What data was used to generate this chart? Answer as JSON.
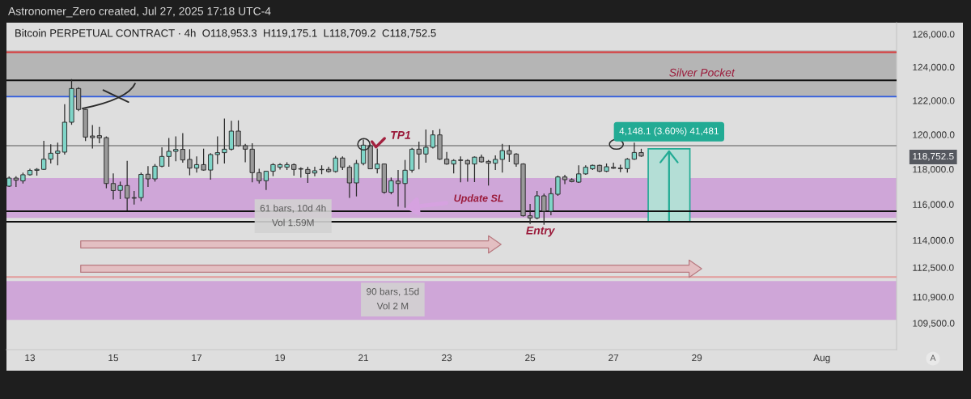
{
  "chart_data": {
    "type": "candlestick",
    "title": "Bitcoin PERPETUAL CONTRACT · 4h  O118,953.3  H119,175.1  L118,709.2  C118,752.5",
    "x": [
      "2025-07-12T12:00",
      "2025-07-12T16:00",
      "2025-07-12T20:00",
      "2025-07-13T00:00",
      "2025-07-13T04:00",
      "2025-07-13T08:00",
      "2025-07-13T12:00",
      "2025-07-13T16:00",
      "2025-07-13T20:00",
      "2025-07-14T00:00",
      "2025-07-14T04:00",
      "2025-07-14T08:00",
      "2025-07-14T12:00",
      "2025-07-14T16:00",
      "2025-07-14T20:00",
      "2025-07-15T00:00",
      "2025-07-15T04:00",
      "2025-07-15T08:00",
      "2025-07-15T12:00",
      "2025-07-15T16:00",
      "2025-07-15T20:00",
      "2025-07-16T00:00",
      "2025-07-16T04:00",
      "2025-07-16T08:00",
      "2025-07-16T12:00",
      "2025-07-16T16:00",
      "2025-07-16T20:00",
      "2025-07-17T00:00",
      "2025-07-17T04:00",
      "2025-07-17T08:00",
      "2025-07-17T12:00",
      "2025-07-17T16:00",
      "2025-07-17T20:00",
      "2025-07-18T00:00",
      "2025-07-18T04:00",
      "2025-07-18T08:00",
      "2025-07-18T12:00",
      "2025-07-18T16:00",
      "2025-07-18T20:00",
      "2025-07-19T00:00",
      "2025-07-19T04:00",
      "2025-07-19T08:00",
      "2025-07-19T12:00",
      "2025-07-19T16:00",
      "2025-07-19T20:00",
      "2025-07-20T00:00",
      "2025-07-20T04:00",
      "2025-07-20T08:00",
      "2025-07-20T12:00",
      "2025-07-20T16:00",
      "2025-07-20T20:00",
      "2025-07-21T00:00",
      "2025-07-21T04:00",
      "2025-07-21T08:00",
      "2025-07-21T12:00",
      "2025-07-21T16:00",
      "2025-07-21T20:00",
      "2025-07-22T00:00",
      "2025-07-22T04:00",
      "2025-07-22T08:00",
      "2025-07-22T12:00",
      "2025-07-22T16:00",
      "2025-07-22T20:00",
      "2025-07-23T00:00",
      "2025-07-23T04:00",
      "2025-07-23T08:00",
      "2025-07-23T12:00",
      "2025-07-23T16:00",
      "2025-07-23T20:00",
      "2025-07-24T00:00",
      "2025-07-24T04:00",
      "2025-07-24T08:00",
      "2025-07-24T12:00",
      "2025-07-24T16:00",
      "2025-07-24T20:00",
      "2025-07-25T00:00",
      "2025-07-25T04:00",
      "2025-07-25T08:00",
      "2025-07-25T12:00",
      "2025-07-25T16:00",
      "2025-07-25T20:00",
      "2025-07-26T00:00",
      "2025-07-26T04:00",
      "2025-07-26T08:00",
      "2025-07-26T12:00",
      "2025-07-26T16:00",
      "2025-07-26T20:00",
      "2025-07-27T00:00",
      "2025-07-27T04:00",
      "2025-07-27T08:00",
      "2025-07-27T12:00",
      "2025-07-27T16:00"
    ],
    "ohlc": [
      [
        117030,
        117590,
        116990,
        117490
      ],
      [
        117490,
        117600,
        116990,
        117370
      ],
      [
        117330,
        117800,
        117180,
        117680
      ],
      [
        117680,
        118020,
        117630,
        117930
      ],
      [
        117930,
        118060,
        117630,
        117990
      ],
      [
        117990,
        119640,
        117955,
        118575
      ],
      [
        118575,
        119430,
        118325,
        118916
      ],
      [
        118916,
        119530,
        118220,
        119040
      ],
      [
        118980,
        121780,
        118840,
        120720
      ],
      [
        120720,
        123275,
        120570,
        122713
      ],
      [
        122713,
        122790,
        121370,
        121470
      ],
      [
        121470,
        121500,
        119620,
        119854
      ],
      [
        119915,
        120560,
        119195,
        119820
      ],
      [
        119935,
        120450,
        119490,
        119810
      ],
      [
        119820,
        119890,
        116910,
        117180
      ],
      [
        117180,
        117755,
        116270,
        116780
      ],
      [
        116790,
        117290,
        116300,
        117063
      ],
      [
        117063,
        118480,
        115660,
        116350
      ],
      [
        116380,
        116760,
        115990,
        116350
      ],
      [
        116380,
        117800,
        116180,
        117700
      ],
      [
        117710,
        118170,
        116990,
        117445
      ],
      [
        117445,
        118295,
        117290,
        118170
      ],
      [
        118170,
        119260,
        118110,
        118730
      ],
      [
        118730,
        119805,
        118140,
        119025
      ],
      [
        119025,
        119890,
        118450,
        119135
      ],
      [
        119140,
        120080,
        118370,
        118530
      ],
      [
        118560,
        119150,
        117650,
        118060
      ],
      [
        118060,
        118730,
        117800,
        118260
      ],
      [
        118260,
        119180,
        117910,
        117950
      ],
      [
        117950,
        118916,
        117400,
        118840
      ],
      [
        118840,
        119890,
        118295,
        118950
      ],
      [
        118950,
        120930,
        118325,
        119150
      ],
      [
        119150,
        120800,
        119070,
        120200
      ],
      [
        120200,
        120830,
        119300,
        119350
      ],
      [
        119350,
        119460,
        118400,
        119150
      ],
      [
        119150,
        119490,
        117245,
        117800
      ],
      [
        117800,
        118020,
        117180,
        117340
      ],
      [
        117340,
        117910,
        116810,
        117880
      ],
      [
        117880,
        118340,
        117600,
        118260
      ],
      [
        118110,
        118340,
        117980,
        118260
      ],
      [
        118110,
        118390,
        117960,
        118260
      ],
      [
        118260,
        118325,
        117630,
        117985
      ],
      [
        118030,
        118110,
        117520,
        118000
      ],
      [
        117985,
        118140,
        117215,
        117750
      ],
      [
        117780,
        118140,
        117600,
        117910
      ],
      [
        117970,
        118220,
        117710,
        117990
      ],
      [
        117990,
        118140,
        117800,
        117865
      ],
      [
        117865,
        118760,
        117800,
        118640
      ],
      [
        118640,
        118730,
        117950,
        118110
      ],
      [
        118110,
        118220,
        116370,
        117215
      ],
      [
        117215,
        118530,
        116450,
        118325
      ],
      [
        118325,
        119700,
        118220,
        119384
      ],
      [
        119350,
        119420,
        118000,
        118020
      ],
      [
        118020,
        119195,
        117755,
        118295
      ],
      [
        118295,
        118325,
        116603,
        116680
      ],
      [
        116680,
        117523,
        116570,
        117340
      ],
      [
        117320,
        117955,
        115870,
        117180
      ],
      [
        117180,
        118530,
        115810,
        117940
      ],
      [
        117940,
        119230,
        117800,
        119150
      ],
      [
        119150,
        119590,
        117985,
        118870
      ],
      [
        118870,
        120290,
        118370,
        119260
      ],
      [
        119260,
        120250,
        119195,
        119980
      ],
      [
        119980,
        120326,
        118530,
        118575
      ],
      [
        118575,
        118995,
        118260,
        118295
      ],
      [
        118295,
        118575,
        117755,
        118500
      ],
      [
        118530,
        118730,
        117245,
        118500
      ],
      [
        118500,
        118575,
        117290,
        118295
      ],
      [
        118295,
        118730,
        117260,
        118690
      ],
      [
        118690,
        118840,
        118370,
        118420
      ],
      [
        118450,
        118530,
        117063,
        118340
      ],
      [
        118340,
        118790,
        117955,
        118560
      ],
      [
        118560,
        119460,
        117800,
        119070
      ],
      [
        119070,
        119384,
        118420,
        118870
      ],
      [
        118870,
        118916,
        118140,
        118295
      ],
      [
        118295,
        118340,
        115315,
        115360
      ],
      [
        115360,
        116020,
        114900,
        115237
      ],
      [
        115237,
        116760,
        115160,
        116480
      ],
      [
        116480,
        116603,
        114850,
        115615
      ],
      [
        115615,
        116940,
        115390,
        116603
      ],
      [
        116570,
        117630,
        116480,
        117555
      ],
      [
        117555,
        117680,
        117150,
        117400
      ],
      [
        117400,
        117480,
        117245,
        117290
      ],
      [
        117260,
        118220,
        117215,
        117730
      ],
      [
        117730,
        118220,
        117680,
        118110
      ],
      [
        118020,
        118260,
        117955,
        118220
      ],
      [
        118220,
        118260,
        117830,
        117880
      ],
      [
        117880,
        118325,
        117830,
        118140
      ],
      [
        118110,
        118370,
        118020,
        118050
      ],
      [
        118060,
        118260,
        117830,
        118030
      ],
      [
        118030,
        118640,
        117800,
        118575
      ],
      [
        118575,
        119530,
        118530,
        118960
      ],
      [
        118953.3,
        119175.1,
        118709.2,
        118752.5
      ]
    ],
    "colors": [
      "#7fd5c8",
      "#9a9a9a",
      "#7fd5c8",
      "#7fd5c8",
      "#7fd5c8",
      "#7fd5c8",
      "#7fd5c8",
      "#7fd5c8",
      "#7fd5c8",
      "#7fd5c8",
      "#9a9a9a",
      "#9a9a9a",
      "#9a9a9a",
      "#9a9a9a",
      "#9a9a9a",
      "#9a9a9a",
      "#7fd5c8",
      "#9a9a9a",
      "#9a9a9a",
      "#7fd5c8",
      "#9a9a9a",
      "#7fd5c8",
      "#7fd5c8",
      "#7fd5c8",
      "#7fd5c8",
      "#9a9a9a",
      "#9a9a9a",
      "#7fd5c8",
      "#9a9a9a",
      "#7fd5c8",
      "#7fd5c8",
      "#7fd5c8",
      "#7fd5c8",
      "#9a9a9a",
      "#9a9a9a",
      "#9a9a9a",
      "#9a9a9a",
      "#7fd5c8",
      "#7fd5c8",
      "#7fd5c8",
      "#7fd5c8",
      "#9a9a9a",
      "#9a9a9a",
      "#9a9a9a",
      "#7fd5c8",
      "#7fd5c8",
      "#9a9a9a",
      "#7fd5c8",
      "#9a9a9a",
      "#9a9a9a",
      "#7fd5c8",
      "#7fd5c8",
      "#9a9a9a",
      "#7fd5c8",
      "#9a9a9a",
      "#7fd5c8",
      "#9a9a9a",
      "#7fd5c8",
      "#7fd5c8",
      "#9a9a9a",
      "#7fd5c8",
      "#7fd5c8",
      "#9a9a9a",
      "#9a9a9a",
      "#7fd5c8",
      "#9a9a9a",
      "#9a9a9a",
      "#7fd5c8",
      "#9a9a9a",
      "#9a9a9a",
      "#7fd5c8",
      "#7fd5c8",
      "#9a9a9a",
      "#9a9a9a",
      "#9a9a9a",
      "#9a9a9a",
      "#7fd5c8",
      "#9a9a9a",
      "#7fd5c8",
      "#7fd5c8",
      "#9a9a9a",
      "#9a9a9a",
      "#7fd5c8",
      "#7fd5c8",
      "#7fd5c8",
      "#9a9a9a",
      "#7fd5c8",
      "#9a9a9a",
      "#9a9a9a",
      "#7fd5c8",
      "#7fd5c8",
      "#9a9a9a"
    ],
    "series": [
      {
        "type": "bar",
        "x": [
          "2025-07-28T08:00"
        ],
        "base": [
          115027
        ],
        "values": [
          4148.1
        ],
        "color": "#b4ded6"
      }
    ],
    "log": true,
    "ylim": [
      108100,
      126700
    ],
    "yticks": [
      {
        "value": 126000,
        "label": "126,000.0"
      },
      {
        "value": 124000,
        "label": "124,000.0"
      },
      {
        "value": 122000,
        "label": "122,000.0"
      },
      {
        "value": 120000,
        "label": "120,000.0"
      },
      {
        "value": 118752.5,
        "label": "118,752.5"
      },
      {
        "value": 118000,
        "label": "118,000.0"
      },
      {
        "value": 116000,
        "label": "116,000.0"
      },
      {
        "value": 114000,
        "label": "114,000.0"
      },
      {
        "value": 112500,
        "label": "112,500.0"
      },
      {
        "value": 110900,
        "label": "110,900.0"
      },
      {
        "value": 109500,
        "label": "109,500.0"
      }
    ],
    "xlim": [
      "2025-07-12T10:30",
      "2025-08-02T19:00"
    ],
    "xticks": [
      {
        "value": "2025-07-13",
        "label": "13"
      },
      {
        "value": "2025-07-15",
        "label": "15"
      },
      {
        "value": "2025-07-17",
        "label": "17"
      },
      {
        "value": "2025-07-19",
        "label": "19"
      },
      {
        "value": "2025-07-21",
        "label": "21"
      },
      {
        "value": "2025-07-23",
        "label": "23"
      },
      {
        "value": "2025-07-25",
        "label": "25"
      },
      {
        "value": "2025-07-27",
        "label": "27"
      },
      {
        "value": "2025-07-29",
        "label": "29"
      },
      {
        "value": "2025-08-01",
        "label": "Aug"
      }
    ],
    "ref_lines": [
      {
        "axis": "y",
        "value": 124900,
        "color": "#d9383a"
      },
      {
        "axis": "y",
        "value": 123200,
        "color": "#111111"
      },
      {
        "axis": "y",
        "value": 122230,
        "color": "#2f5be0"
      },
      {
        "axis": "y",
        "value": 119350,
        "color": "#9a9a9a"
      },
      {
        "axis": "y",
        "value": 115615,
        "color": "#111111"
      },
      {
        "axis": "y",
        "value": 115027,
        "color": "#111111"
      },
      {
        "axis": "y",
        "value": 111980,
        "color": "#e39a9a"
      }
    ],
    "bands": [
      {
        "axis": "y",
        "from": 122230,
        "to": 125000,
        "label": "Silver Pocket",
        "color": "#b5b5b5"
      },
      {
        "axis": "y",
        "from": 115237,
        "to": 117490,
        "color": "#cfa6d8"
      },
      {
        "axis": "y",
        "from": 109672,
        "to": 111760,
        "color": "#cfa6d8"
      }
    ],
    "annotations": [
      "Astronomer_Zero created, Jul 27, 2025 17:18 UTC-4",
      "A",
      "61 bars, 10d 4h\nVol 1.59M",
      "90 bars, 15d\nVol 2 M",
      {
        "text": "TP1",
        "x": "2025-07-21T20:00",
        "y": 119350
      },
      {
        "text": "Update SL",
        "x": "2025-07-22T00:00",
        "y": 115800
      },
      {
        "text": "Entry",
        "x": "2025-07-25T04:00",
        "y": 115027
      },
      {
        "text": "4,148.1 (3.60%) 41,481",
        "x": "2025-07-28T08:00",
        "y": 119175.1
      }
    ],
    "grid": false
  }
}
